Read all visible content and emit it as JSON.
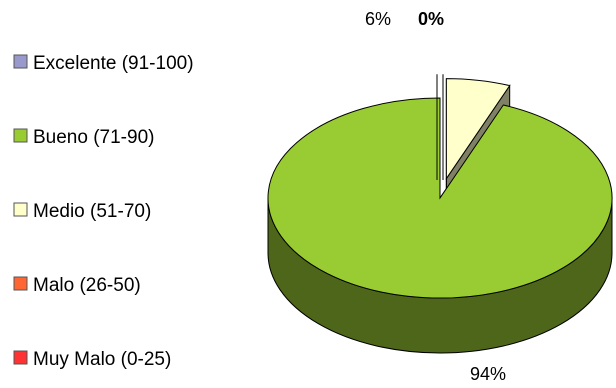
{
  "chart_data": {
    "type": "pie",
    "style": "3d-exploded",
    "legend_position": "left",
    "series": [
      {
        "name": "Excelente (91-100)",
        "value": 0,
        "label": "0%",
        "color": "#9999cc"
      },
      {
        "name": "Bueno (71-90)",
        "value": 94,
        "label": "94%",
        "color": "#99cc33"
      },
      {
        "name": "Medio (51-70)",
        "value": 6,
        "label": "6%",
        "color": "#ffffcc"
      },
      {
        "name": "Malo (26-50)",
        "value": 0,
        "label": "",
        "color": "#ff6633"
      },
      {
        "name": "Muy Malo (0-25)",
        "value": 0,
        "label": "",
        "color": "#ff3333"
      }
    ]
  }
}
